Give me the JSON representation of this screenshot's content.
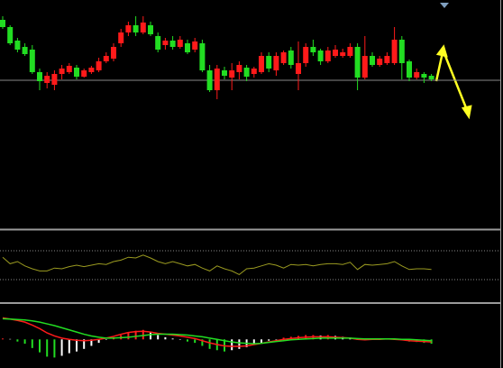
{
  "chart_data": [
    {
      "type": "candlestick",
      "open": [
        231,
        223,
        208,
        201,
        198,
        173,
        161,
        159,
        171,
        173,
        178,
        168,
        173,
        175,
        185,
        188,
        205,
        217,
        225,
        217,
        225,
        213,
        203,
        208,
        201,
        205,
        198,
        205,
        175,
        153,
        175,
        167,
        173,
        178,
        171,
        173,
        191,
        175,
        183,
        197,
        171,
        183,
        201,
        197,
        185,
        191,
        191,
        191,
        201,
        167,
        191,
        181,
        183,
        183,
        209,
        185,
        167,
        171,
        169
      ],
      "close": [
        223,
        205,
        198,
        193,
        173,
        163,
        169,
        171,
        177,
        180,
        168,
        175,
        178,
        185,
        191,
        201,
        217,
        225,
        217,
        228,
        215,
        198,
        208,
        201,
        209,
        195,
        207,
        175,
        153,
        177,
        169,
        175,
        181,
        168,
        177,
        191,
        177,
        191,
        195,
        181,
        183,
        201,
        195,
        185,
        197,
        198,
        195,
        201,
        167,
        191,
        181,
        188,
        191,
        209,
        183,
        167,
        173,
        167,
        165
      ],
      "high": [
        235,
        225,
        211,
        205,
        203,
        177,
        173,
        175,
        181,
        183,
        181,
        177,
        180,
        189,
        195,
        205,
        221,
        229,
        235,
        235,
        229,
        217,
        211,
        213,
        213,
        209,
        211,
        209,
        181,
        181,
        179,
        183,
        185,
        181,
        179,
        195,
        195,
        195,
        197,
        201,
        207,
        205,
        209,
        199,
        201,
        203,
        199,
        205,
        205,
        213,
        195,
        191,
        195,
        223,
        213,
        187,
        177,
        173,
        171
      ],
      "low": [
        221,
        203,
        195,
        191,
        171,
        153,
        155,
        153,
        165,
        171,
        165,
        167,
        171,
        173,
        183,
        185,
        201,
        213,
        213,
        215,
        213,
        195,
        198,
        198,
        199,
        193,
        195,
        173,
        151,
        143,
        165,
        153,
        165,
        163,
        167,
        171,
        173,
        169,
        181,
        177,
        153,
        179,
        191,
        181,
        183,
        189,
        189,
        189,
        153,
        165,
        179,
        179,
        181,
        181,
        165,
        163,
        165,
        161,
        163
      ],
      "up_color": "#ff1a1a",
      "down_color": "#22dd22",
      "ylim": [
        0,
        253
      ],
      "hline": 164
    },
    {
      "type": "line",
      "values": [
        61,
        52,
        55,
        49,
        45,
        42,
        42,
        46,
        45,
        48,
        50,
        48,
        50,
        52,
        51,
        55,
        57,
        61,
        60,
        64,
        60,
        55,
        52,
        55,
        52,
        49,
        51,
        46,
        42,
        49,
        45,
        42,
        37,
        45,
        46,
        49,
        52,
        50,
        46,
        51,
        50,
        51,
        49,
        51,
        52,
        52,
        51,
        54,
        44,
        51,
        50,
        51,
        52,
        55,
        49,
        44,
        45,
        45,
        44
      ],
      "color": "#9a9a20",
      "ylim": [
        0,
        100
      ],
      "levels": [
        70,
        30
      ]
    },
    {
      "type": "histogram-lines",
      "values": [
        0.02,
        0.01,
        -0.05,
        -0.1,
        -0.2,
        -0.3,
        -0.4,
        -0.42,
        -0.38,
        -0.32,
        -0.28,
        -0.22,
        -0.15,
        -0.08,
        0.0,
        0.05,
        0.1,
        0.15,
        0.2,
        0.22,
        0.18,
        0.1,
        0.05,
        0.02,
        0.0,
        -0.05,
        -0.08,
        -0.15,
        -0.22,
        -0.25,
        -0.28,
        -0.25,
        -0.22,
        -0.18,
        -0.12,
        -0.08,
        -0.03,
        0.0,
        0.04,
        0.06,
        0.08,
        0.1,
        0.1,
        0.09,
        0.1,
        0.08,
        0.06,
        0.04,
        0.0,
        -0.02,
        0.0,
        0.0,
        0.02,
        0.0,
        -0.02,
        -0.05,
        -0.06,
        -0.08,
        -0.1
      ],
      "rise_color": "#ff2020",
      "fall_color": "#22dd22",
      "fade_color": "#ffffff",
      "series": [
        {
          "color": "#ff1a1a",
          "values": [
            0.5,
            0.47,
            0.44,
            0.4,
            0.33,
            0.25,
            0.15,
            0.08,
            0.03,
            0.0,
            -0.02,
            -0.03,
            -0.02,
            0.0,
            0.03,
            0.07,
            0.12,
            0.16,
            0.18,
            0.19,
            0.17,
            0.14,
            0.12,
            0.1,
            0.08,
            0.05,
            0.02,
            -0.03,
            -0.08,
            -0.12,
            -0.15,
            -0.16,
            -0.16,
            -0.15,
            -0.12,
            -0.09,
            -0.06,
            -0.03,
            0.0,
            0.02,
            0.04,
            0.05,
            0.06,
            0.06,
            0.06,
            0.05,
            0.04,
            0.03,
            0.0,
            -0.01,
            0.0,
            0.0,
            0.01,
            0.0,
            -0.01,
            -0.03,
            -0.04,
            -0.05,
            -0.06
          ]
        },
        {
          "color": "#22dd22",
          "values": [
            0.48,
            0.47,
            0.46,
            0.45,
            0.43,
            0.4,
            0.36,
            0.32,
            0.27,
            0.22,
            0.17,
            0.12,
            0.08,
            0.05,
            0.03,
            0.03,
            0.04,
            0.05,
            0.07,
            0.09,
            0.11,
            0.12,
            0.12,
            0.12,
            0.11,
            0.1,
            0.08,
            0.06,
            0.03,
            0.0,
            -0.03,
            -0.06,
            -0.08,
            -0.09,
            -0.1,
            -0.09,
            -0.07,
            -0.05,
            -0.03,
            -0.01,
            0.0,
            0.01,
            0.02,
            0.03,
            0.03,
            0.03,
            0.03,
            0.03,
            0.02,
            0.01,
            0.01,
            0.01,
            0.01,
            0.01,
            0.0,
            0.0,
            -0.01,
            -0.02,
            -0.03
          ]
        }
      ],
      "ylim": [
        -0.6,
        0.8
      ]
    }
  ]
}
